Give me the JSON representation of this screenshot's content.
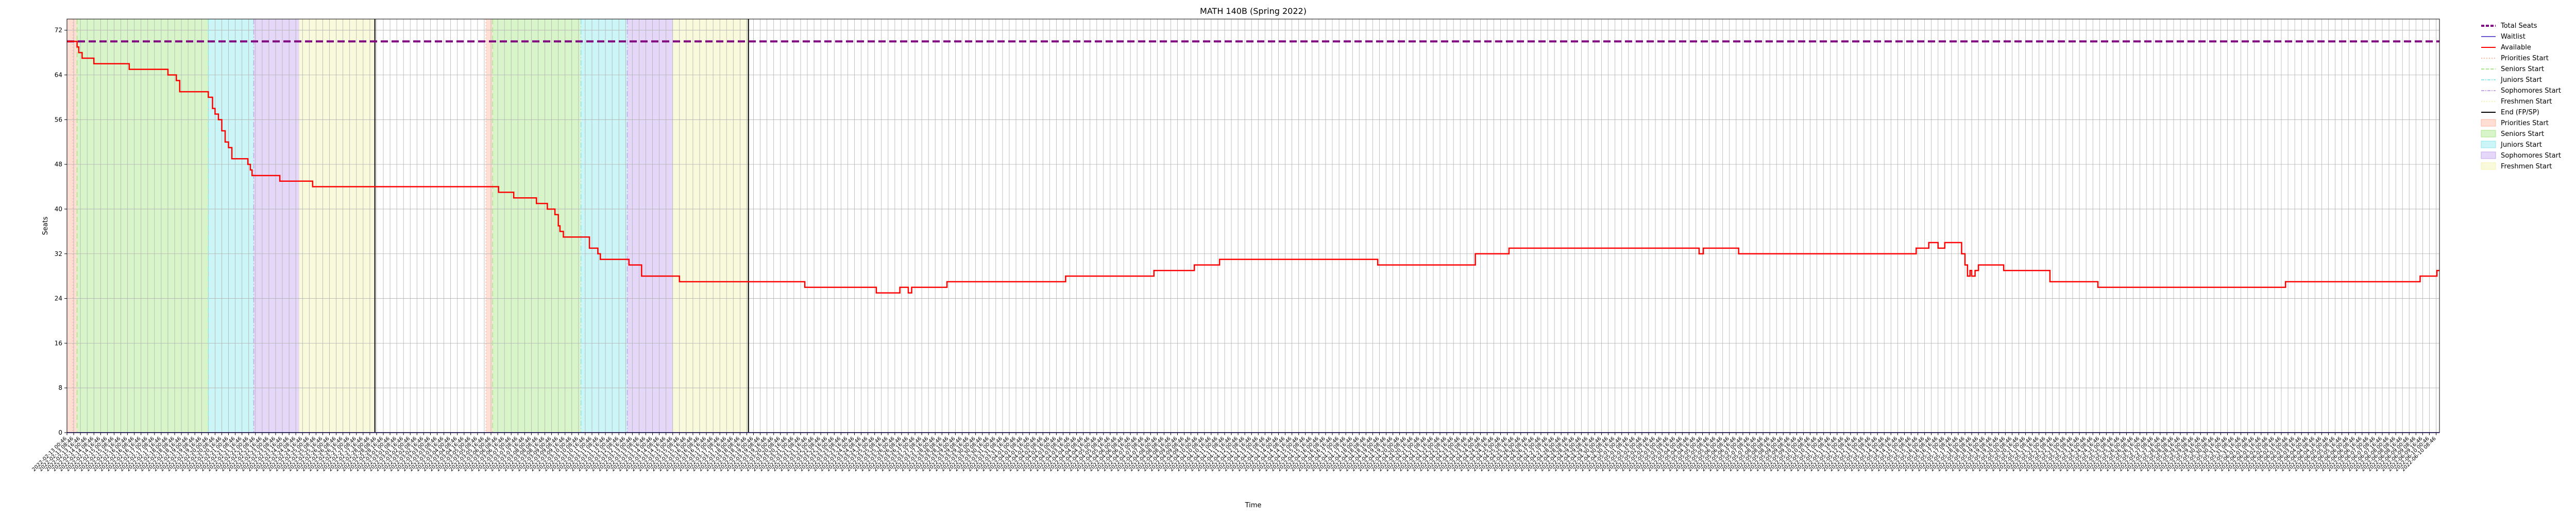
{
  "chart_data": {
    "type": "line",
    "title": "MATH 140B (Spring 2022)",
    "xlabel": "Time",
    "ylabel": "Seats",
    "ylim": [
      0,
      74
    ],
    "yticks": [
      0,
      8,
      16,
      24,
      32,
      40,
      48,
      56,
      64,
      72
    ],
    "x_unit": "hours since first time label (2022-02-13 00:46)",
    "x_range": [
      0,
      2820
    ],
    "x_tick_step_hours": 8,
    "x_tick_start": "2022-02-13 00:46",
    "grid": true,
    "legend_position": "outside upper right",
    "colors": {
      "total": "#800080",
      "waitlist": "#6a5acd",
      "available": "#ff0000",
      "priorities": "#ffb6a0",
      "seniors": "#a8e88a",
      "juniors": "#8ee8ee",
      "sophomores": "#c3a6ee",
      "freshmen": "#f2f2b0",
      "end": "#000000"
    },
    "series": [
      {
        "name": "Total Seats",
        "style": "dashed",
        "points": [
          [
            0,
            70
          ],
          [
            2820,
            70
          ]
        ]
      },
      {
        "name": "Waitlist",
        "style": "solid",
        "points": [
          [
            0,
            0
          ],
          [
            2820,
            0
          ]
        ]
      },
      {
        "name": "Available",
        "style": "step",
        "points": [
          [
            0,
            70
          ],
          [
            12,
            69
          ],
          [
            14,
            68
          ],
          [
            18,
            67
          ],
          [
            30,
            67
          ],
          [
            32,
            66
          ],
          [
            72,
            66
          ],
          [
            74,
            65
          ],
          [
            115,
            65
          ],
          [
            120,
            64
          ],
          [
            130,
            63
          ],
          [
            134,
            61
          ],
          [
            165,
            61
          ],
          [
            168,
            60
          ],
          [
            173,
            58
          ],
          [
            176,
            57
          ],
          [
            180,
            56
          ],
          [
            184,
            54
          ],
          [
            188,
            52
          ],
          [
            192,
            51
          ],
          [
            196,
            49
          ],
          [
            212,
            49
          ],
          [
            215,
            48
          ],
          [
            218,
            47
          ],
          [
            220,
            46
          ],
          [
            250,
            46
          ],
          [
            253,
            45
          ],
          [
            290,
            45
          ],
          [
            292,
            44
          ],
          [
            510,
            44
          ],
          [
            513,
            43
          ],
          [
            528,
            43
          ],
          [
            531,
            42
          ],
          [
            555,
            42
          ],
          [
            558,
            41
          ],
          [
            568,
            41
          ],
          [
            571,
            40
          ],
          [
            577,
            40
          ],
          [
            580,
            39
          ],
          [
            584,
            37
          ],
          [
            586,
            36
          ],
          [
            590,
            35
          ],
          [
            618,
            35
          ],
          [
            621,
            33
          ],
          [
            631,
            32
          ],
          [
            634,
            31
          ],
          [
            665,
            31
          ],
          [
            668,
            30
          ],
          [
            680,
            30
          ],
          [
            683,
            28
          ],
          [
            725,
            28
          ],
          [
            728,
            27
          ],
          [
            875,
            27
          ],
          [
            877,
            26
          ],
          [
            960,
            26
          ],
          [
            962,
            25
          ],
          [
            988,
            25
          ],
          [
            990,
            26
          ],
          [
            998,
            26
          ],
          [
            1000,
            25
          ],
          [
            1004,
            26
          ],
          [
            1044,
            26
          ],
          [
            1046,
            27
          ],
          [
            1185,
            27
          ],
          [
            1187,
            28
          ],
          [
            1290,
            28
          ],
          [
            1292,
            29
          ],
          [
            1338,
            29
          ],
          [
            1340,
            30
          ],
          [
            1368,
            30
          ],
          [
            1370,
            31
          ],
          [
            1556,
            31
          ],
          [
            1558,
            30
          ],
          [
            1672,
            30
          ],
          [
            1674,
            32
          ],
          [
            1712,
            32
          ],
          [
            1714,
            33
          ],
          [
            1935,
            33
          ],
          [
            1940,
            32
          ],
          [
            1945,
            33
          ],
          [
            1985,
            33
          ],
          [
            1987,
            32
          ],
          [
            2195,
            32
          ],
          [
            2198,
            33
          ],
          [
            2210,
            33
          ],
          [
            2213,
            34
          ],
          [
            2222,
            34
          ],
          [
            2224,
            33
          ],
          [
            2232,
            34
          ],
          [
            2248,
            34
          ],
          [
            2252,
            32
          ],
          [
            2256,
            30
          ],
          [
            2259,
            28
          ],
          [
            2262,
            29
          ],
          [
            2264,
            28
          ],
          [
            2268,
            29
          ],
          [
            2272,
            30
          ],
          [
            2300,
            30
          ],
          [
            2302,
            29
          ],
          [
            2355,
            29
          ],
          [
            2357,
            27
          ],
          [
            2412,
            27
          ],
          [
            2414,
            26
          ],
          [
            2635,
            26
          ],
          [
            2637,
            27
          ],
          [
            2795,
            27
          ],
          [
            2797,
            28
          ],
          [
            2815,
            28
          ],
          [
            2817,
            29
          ],
          [
            2820,
            29
          ]
        ]
      }
    ],
    "vlines": [
      {
        "name": "Priorities Start",
        "x": 7,
        "style": "dotted"
      },
      {
        "name": "Seniors Start",
        "x": 12,
        "style": "dashed"
      },
      {
        "name": "Juniors Start",
        "x": 168,
        "style": "dashdot"
      },
      {
        "name": "Sophomores Start",
        "x": 222,
        "style": "dashdot"
      },
      {
        "name": "End (FP/SP)",
        "x": 366,
        "style": "solid"
      },
      {
        "name": "Priorities Start",
        "x": 498,
        "style": "dotted"
      },
      {
        "name": "Seniors Start",
        "x": 506,
        "style": "dashed"
      },
      {
        "name": "Juniors Start",
        "x": 611,
        "style": "dashdot"
      },
      {
        "name": "Sophomores Start",
        "x": 666,
        "style": "dashdot"
      },
      {
        "name": "End (FP/SP)",
        "x": 810,
        "style": "solid"
      }
    ],
    "spans": [
      {
        "name": "Priorities Start",
        "x0": 0,
        "x1": 12
      },
      {
        "name": "Seniors Start",
        "x0": 12,
        "x1": 168
      },
      {
        "name": "Juniors Start",
        "x0": 168,
        "x1": 222
      },
      {
        "name": "Sophomores Start",
        "x0": 222,
        "x1": 276
      },
      {
        "name": "Freshmen Start",
        "x0": 276,
        "x1": 366
      },
      {
        "name": "Priorities Start",
        "x0": 498,
        "x1": 506
      },
      {
        "name": "Seniors Start",
        "x0": 506,
        "x1": 611
      },
      {
        "name": "Juniors Start",
        "x0": 611,
        "x1": 666
      },
      {
        "name": "Sophomores Start",
        "x0": 666,
        "x1": 720
      },
      {
        "name": "Freshmen Start",
        "x0": 720,
        "x1": 810
      }
    ],
    "legend": [
      {
        "label": "Total Seats",
        "kind": "line",
        "style": "dashed",
        "colorKey": "total"
      },
      {
        "label": "Waitlist",
        "kind": "line",
        "style": "solid",
        "colorKey": "waitlist"
      },
      {
        "label": "Available",
        "kind": "line",
        "style": "solid",
        "colorKey": "available"
      },
      {
        "label": "Priorities Start",
        "kind": "line",
        "style": "dotted",
        "colorKey": "priorities"
      },
      {
        "label": "Seniors Start",
        "kind": "line",
        "style": "dashed",
        "colorKey": "seniors"
      },
      {
        "label": "Juniors Start",
        "kind": "line",
        "style": "dashdot",
        "colorKey": "juniors"
      },
      {
        "label": "Sophomores Start",
        "kind": "line",
        "style": "dashdot",
        "colorKey": "sophomores"
      },
      {
        "label": "Freshmen Start",
        "kind": "line",
        "style": "dotted",
        "colorKey": "freshmen"
      },
      {
        "label": "End (FP/SP)",
        "kind": "line",
        "style": "solid",
        "colorKey": "end"
      },
      {
        "label": "Priorities Start",
        "kind": "patch",
        "colorKey": "priorities"
      },
      {
        "label": "Seniors Start",
        "kind": "patch",
        "colorKey": "seniors"
      },
      {
        "label": "Juniors Start",
        "kind": "patch",
        "colorKey": "juniors"
      },
      {
        "label": "Sophomores Start",
        "kind": "patch",
        "colorKey": "sophomores"
      },
      {
        "label": "Freshmen Start",
        "kind": "patch",
        "colorKey": "freshmen"
      }
    ]
  }
}
